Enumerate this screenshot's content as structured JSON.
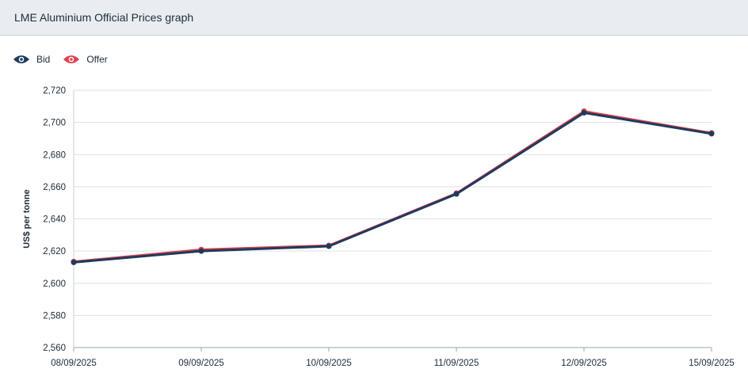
{
  "header": {
    "title": "LME Aluminium Official Prices graph"
  },
  "legend": [
    {
      "label": "Bid",
      "icon": "eye-icon",
      "color": "#1e3a5c"
    },
    {
      "label": "Offer",
      "icon": "eye-icon",
      "color": "#e0404e"
    }
  ],
  "chart_data": {
    "type": "line",
    "x": [
      "08/09/2025",
      "09/09/2025",
      "10/09/2025",
      "11/09/2025",
      "12/09/2025",
      "15/09/2025"
    ],
    "series": [
      {
        "name": "Offer",
        "color": "#e0404e",
        "values": [
          2613.5,
          2621,
          2623.5,
          2656,
          2707,
          2693.5
        ]
      },
      {
        "name": "Bid",
        "color": "#1e3a5c",
        "values": [
          2613,
          2620,
          2623,
          2655.5,
          2706,
          2693
        ]
      }
    ],
    "ylabel": "US$ per tonne",
    "ylim": [
      2560,
      2720
    ],
    "yticks": [
      "2,720",
      "2,700",
      "2,680",
      "2,660",
      "2,640",
      "2,620",
      "2,600",
      "2,580",
      "2,560"
    ],
    "ytick_values": [
      2720,
      2700,
      2680,
      2660,
      2640,
      2620,
      2600,
      2580,
      2560
    ],
    "grid": true,
    "legend_position": "top-left"
  }
}
